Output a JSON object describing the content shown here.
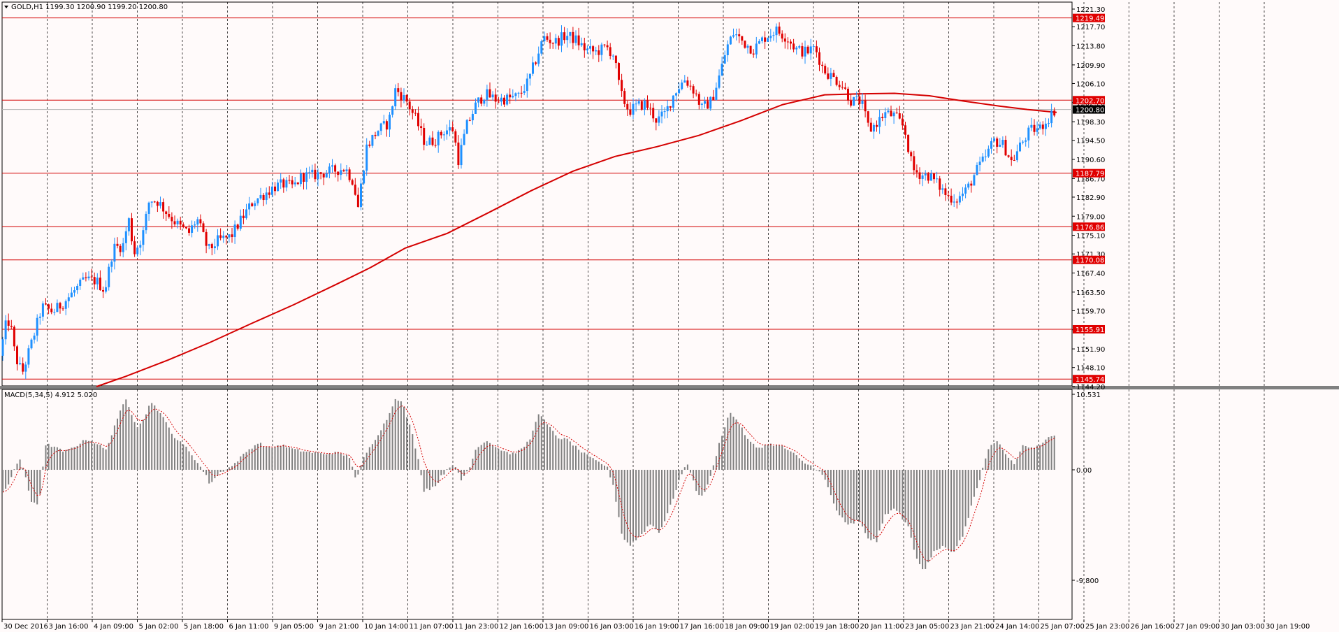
{
  "chart_data": [
    {
      "type": "candlestick",
      "symbol_header": "GOLD,H1",
      "ohlc_header": "1199.30 1200.90 1199.20 1200.80",
      "ylim": [
        1144.2,
        1223.0
      ],
      "y_ticks": [
        "1221.30",
        "1217.70",
        "1213.80",
        "1209.90",
        "1206.10",
        "1202.20",
        "1198.30",
        "1194.50",
        "1190.60",
        "1186.70",
        "1182.90",
        "1179.00",
        "1175.10",
        "1171.30",
        "1167.40",
        "1163.50",
        "1159.70",
        "1155.80",
        "1151.90",
        "1148.10",
        "1144.20"
      ],
      "x_labels": [
        "30 Dec 2016",
        "3 Jan 16:00",
        "4 Jan 09:00",
        "5 Jan 02:00",
        "5 Jan 18:00",
        "6 Jan 11:00",
        "9 Jan 05:00",
        "9 Jan 21:00",
        "10 Jan 14:00",
        "11 Jan 07:00",
        "11 Jan 23:00",
        "12 Jan 16:00",
        "13 Jan 09:00",
        "16 Jan 03:00",
        "16 Jan 19:00",
        "17 Jan 16:00",
        "18 Jan 09:00",
        "19 Jan 02:00",
        "19 Jan 18:00",
        "20 Jan 11:00",
        "23 Jan 05:00",
        "23 Jan 21:00",
        "24 Jan 14:00",
        "25 Jan 07:00",
        "25 Jan 23:00",
        "26 Jan 16:00",
        "27 Jan 09:00",
        "30 Jan 03:00",
        "30 Jan 19:00"
      ],
      "horizontal_levels": [
        {
          "label": "1219.49",
          "value": 1219.49
        },
        {
          "label": "1202.70",
          "value": 1202.7
        },
        {
          "label": "1187.79",
          "value": 1187.79
        },
        {
          "label": "1176.86",
          "value": 1176.86
        },
        {
          "label": "1170.08",
          "value": 1170.08
        },
        {
          "label": "1155.91",
          "value": 1155.91
        },
        {
          "label": "1145.74",
          "value": 1145.74
        }
      ],
      "current_price": {
        "label": "1200.80",
        "value": 1200.8
      },
      "price_path": [
        [
          0,
          1150.5
        ],
        [
          8,
          1156.5
        ],
        [
          14,
          1157.8
        ],
        [
          22,
          1150.2
        ],
        [
          32,
          1147.0
        ],
        [
          46,
          1153.5
        ],
        [
          60,
          1160.5
        ],
        [
          76,
          1159.5
        ],
        [
          92,
          1161.5
        ],
        [
          108,
          1164.0
        ],
        [
          122,
          1166.0
        ],
        [
          138,
          1165.8
        ],
        [
          150,
          1163.8
        ],
        [
          162,
          1172.5
        ],
        [
          176,
          1173.0
        ],
        [
          184,
          1178.5
        ],
        [
          192,
          1171.5
        ],
        [
          204,
          1175.0
        ],
        [
          214,
          1182.5
        ],
        [
          226,
          1182.0
        ],
        [
          240,
          1179.5
        ],
        [
          256,
          1177.0
        ],
        [
          270,
          1175.5
        ],
        [
          282,
          1178.5
        ],
        [
          298,
          1172.0
        ],
        [
          312,
          1174.0
        ],
        [
          330,
          1174.8
        ],
        [
          346,
          1178.5
        ],
        [
          362,
          1182.0
        ],
        [
          378,
          1183.5
        ],
        [
          392,
          1185.0
        ],
        [
          406,
          1185.5
        ],
        [
          420,
          1185.0
        ],
        [
          432,
          1187.2
        ],
        [
          446,
          1187.3
        ],
        [
          462,
          1187.8
        ],
        [
          480,
          1188.4
        ],
        [
          494,
          1188.8
        ],
        [
          506,
          1186.0
        ],
        [
          512,
          1180.5
        ],
        [
          524,
          1193.0
        ],
        [
          540,
          1196.5
        ],
        [
          556,
          1198.0
        ],
        [
          566,
          1205.0
        ],
        [
          582,
          1202.5
        ],
        [
          596,
          1198.5
        ],
        [
          608,
          1194.0
        ],
        [
          622,
          1194.5
        ],
        [
          636,
          1196.5
        ],
        [
          648,
          1196.8
        ],
        [
          656,
          1190.5
        ],
        [
          668,
          1197.5
        ],
        [
          682,
          1202.0
        ],
        [
          694,
          1204.0
        ],
        [
          710,
          1202.8
        ],
        [
          726,
          1203.0
        ],
        [
          742,
          1203.5
        ],
        [
          756,
          1206.5
        ],
        [
          768,
          1211.5
        ],
        [
          778,
          1215.5
        ],
        [
          794,
          1214.5
        ],
        [
          810,
          1216.0
        ],
        [
          824,
          1215.0
        ],
        [
          838,
          1213.0
        ],
        [
          852,
          1212.5
        ],
        [
          868,
          1213.5
        ],
        [
          878,
          1212.0
        ],
        [
          888,
          1204.0
        ],
        [
          900,
          1200.5
        ],
        [
          912,
          1201.5
        ],
        [
          924,
          1202.0
        ],
        [
          940,
          1198.5
        ],
        [
          952,
          1200.0
        ],
        [
          966,
          1204.5
        ],
        [
          980,
          1207.0
        ],
        [
          994,
          1204.5
        ],
        [
          1004,
          1201.0
        ],
        [
          1018,
          1202.5
        ],
        [
          1030,
          1208.0
        ],
        [
          1040,
          1213.5
        ],
        [
          1050,
          1216.5
        ],
        [
          1064,
          1214.5
        ],
        [
          1078,
          1213.0
        ],
        [
          1094,
          1215.5
        ],
        [
          1110,
          1217.0
        ],
        [
          1126,
          1215.5
        ],
        [
          1140,
          1213.0
        ],
        [
          1154,
          1212.5
        ],
        [
          1166,
          1213.5
        ],
        [
          1178,
          1209.0
        ],
        [
          1190,
          1207.5
        ],
        [
          1204,
          1206.0
        ],
        [
          1218,
          1202.5
        ],
        [
          1232,
          1202.5
        ],
        [
          1244,
          1196.5
        ],
        [
          1254,
          1198.0
        ],
        [
          1266,
          1200.0
        ],
        [
          1280,
          1199.5
        ],
        [
          1294,
          1197.0
        ],
        [
          1306,
          1188.5
        ],
        [
          1318,
          1187.5
        ],
        [
          1330,
          1187.3
        ],
        [
          1342,
          1185.5
        ],
        [
          1356,
          1183.0
        ],
        [
          1370,
          1182.5
        ],
        [
          1384,
          1184.5
        ],
        [
          1396,
          1188.0
        ],
        [
          1410,
          1191.0
        ],
        [
          1422,
          1194.5
        ],
        [
          1436,
          1193.5
        ],
        [
          1448,
          1190.0
        ],
        [
          1460,
          1193.5
        ],
        [
          1474,
          1196.5
        ],
        [
          1488,
          1197.0
        ],
        [
          1500,
          1199.0
        ],
        [
          1510,
          1200.8
        ]
      ],
      "ma_path": [
        [
          138,
          1144.2
        ],
        [
          180,
          1146.3
        ],
        [
          240,
          1149.6
        ],
        [
          300,
          1153.2
        ],
        [
          360,
          1157.1
        ],
        [
          420,
          1160.9
        ],
        [
          480,
          1165.0
        ],
        [
          530,
          1168.5
        ],
        [
          580,
          1172.5
        ],
        [
          640,
          1175.5
        ],
        [
          700,
          1179.8
        ],
        [
          760,
          1184.2
        ],
        [
          820,
          1188.2
        ],
        [
          880,
          1191.2
        ],
        [
          940,
          1193.2
        ],
        [
          1000,
          1195.5
        ],
        [
          1060,
          1198.5
        ],
        [
          1120,
          1201.8
        ],
        [
          1180,
          1203.8
        ],
        [
          1230,
          1204.0
        ],
        [
          1280,
          1204.1
        ],
        [
          1330,
          1203.6
        ],
        [
          1380,
          1202.5
        ],
        [
          1430,
          1201.5
        ],
        [
          1470,
          1200.8
        ],
        [
          1512,
          1200.2
        ]
      ]
    },
    {
      "type": "histogram",
      "indicator_header": "MACD(5,34,5) 4.912 5.020",
      "ylim": [
        -10.5,
        10.6
      ],
      "y_ticks": [
        "10.531",
        "0.00",
        "-9.800"
      ],
      "macd_path": [
        [
          0,
          -2.2
        ],
        [
          12,
          -1.5
        ],
        [
          28,
          1.6
        ],
        [
          44,
          -2.8
        ],
        [
          56,
          -3.0
        ],
        [
          66,
          3.6
        ],
        [
          78,
          3.2
        ],
        [
          92,
          2.5
        ],
        [
          108,
          3.3
        ],
        [
          124,
          4.3
        ],
        [
          140,
          3.6
        ],
        [
          152,
          2.7
        ],
        [
          166,
          6.8
        ],
        [
          180,
          9.8
        ],
        [
          196,
          6.0
        ],
        [
          208,
          7.5
        ],
        [
          216,
          9.6
        ],
        [
          230,
          7.8
        ],
        [
          250,
          4.5
        ],
        [
          268,
          3.0
        ],
        [
          286,
          0.5
        ],
        [
          300,
          -1.2
        ],
        [
          318,
          -0.1
        ],
        [
          332,
          0.5
        ],
        [
          352,
          2.5
        ],
        [
          370,
          3.8
        ],
        [
          384,
          3.0
        ],
        [
          402,
          3.5
        ],
        [
          422,
          2.8
        ],
        [
          440,
          2.5
        ],
        [
          462,
          2.2
        ],
        [
          482,
          2.4
        ],
        [
          500,
          1.8
        ],
        [
          510,
          -1.2
        ],
        [
          522,
          2.0
        ],
        [
          540,
          4.8
        ],
        [
          556,
          7.5
        ],
        [
          566,
          10.1
        ],
        [
          576,
          9.3
        ],
        [
          590,
          5.0
        ],
        [
          606,
          -1.8
        ],
        [
          622,
          -1.5
        ],
        [
          636,
          -0.2
        ],
        [
          648,
          0.8
        ],
        [
          660,
          -1.0
        ],
        [
          672,
          0.3
        ],
        [
          682,
          3.2
        ],
        [
          698,
          4.1
        ],
        [
          712,
          3.0
        ],
        [
          732,
          2.2
        ],
        [
          746,
          2.8
        ],
        [
          760,
          4.5
        ],
        [
          770,
          8.0
        ],
        [
          784,
          6.2
        ],
        [
          798,
          4.5
        ],
        [
          812,
          4.2
        ],
        [
          832,
          2.5
        ],
        [
          848,
          1.5
        ],
        [
          868,
          0.5
        ],
        [
          878,
          -1.5
        ],
        [
          890,
          -5.8
        ],
        [
          900,
          -6.7
        ],
        [
          914,
          -6.0
        ],
        [
          930,
          -4.8
        ],
        [
          944,
          -5.5
        ],
        [
          958,
          -3.5
        ],
        [
          970,
          -1.2
        ],
        [
          984,
          0.8
        ],
        [
          994,
          -1.5
        ],
        [
          1004,
          -2.5
        ],
        [
          1018,
          -0.5
        ],
        [
          1030,
          4.0
        ],
        [
          1044,
          8.0
        ],
        [
          1056,
          6.8
        ],
        [
          1070,
          4.2
        ],
        [
          1084,
          3.0
        ],
        [
          1100,
          3.6
        ],
        [
          1118,
          3.3
        ],
        [
          1134,
          2.4
        ],
        [
          1150,
          1.0
        ],
        [
          1166,
          0.3
        ],
        [
          1180,
          -0.8
        ],
        [
          1196,
          -3.5
        ],
        [
          1212,
          -5.0
        ],
        [
          1228,
          -4.5
        ],
        [
          1242,
          -6.0
        ],
        [
          1254,
          -6.4
        ],
        [
          1268,
          -3.8
        ],
        [
          1282,
          -3.5
        ],
        [
          1298,
          -4.8
        ],
        [
          1312,
          -8.0
        ],
        [
          1322,
          -8.9
        ],
        [
          1336,
          -7.2
        ],
        [
          1348,
          -6.8
        ],
        [
          1362,
          -7.4
        ],
        [
          1376,
          -6.2
        ],
        [
          1390,
          -3.2
        ],
        [
          1404,
          -0.5
        ],
        [
          1416,
          3.2
        ],
        [
          1428,
          4.0
        ],
        [
          1440,
          2.0
        ],
        [
          1452,
          0.8
        ],
        [
          1464,
          3.5
        ],
        [
          1476,
          3.0
        ],
        [
          1490,
          3.4
        ],
        [
          1502,
          4.8
        ],
        [
          1512,
          5.0
        ]
      ]
    }
  ]
}
